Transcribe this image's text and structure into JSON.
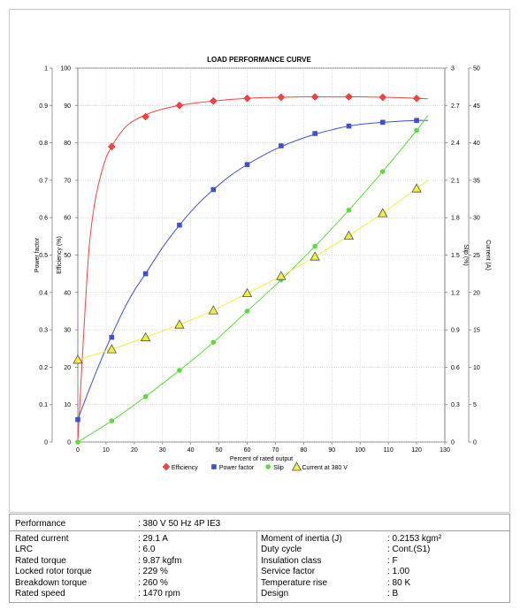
{
  "chart_data": {
    "type": "line",
    "title": "LOAD PERFORMANCE CURVE",
    "xlabel": "Percent of rated output",
    "xlim": [
      0,
      130
    ],
    "x_ticks": [
      0,
      10,
      20,
      30,
      40,
      50,
      60,
      70,
      80,
      90,
      100,
      110,
      120,
      130
    ],
    "axes": {
      "power_factor": {
        "label": "Power factor",
        "lim": [
          0,
          1
        ],
        "ticks": [
          "0",
          "0.1",
          "0.2",
          "0.3",
          "0.4",
          "0.5",
          "0.6",
          "0.7",
          "0.8",
          "0.9",
          "1"
        ]
      },
      "efficiency": {
        "label": "Efficiency (%)",
        "lim": [
          0,
          100
        ],
        "ticks": [
          "0",
          "10",
          "20",
          "30",
          "40",
          "50",
          "60",
          "70",
          "80",
          "90",
          "100"
        ]
      },
      "slip": {
        "label": "Slip (%)",
        "lim": [
          0,
          3
        ],
        "ticks": [
          "0",
          "0.3",
          "0.6",
          "0.9",
          "1.2",
          "1.5",
          "1.8",
          "2.1",
          "2.4",
          "2.7",
          "3"
        ]
      },
      "current": {
        "label": "Current (A)",
        "lim": [
          0,
          50
        ],
        "ticks": [
          "0",
          "5",
          "10",
          "15",
          "20",
          "25",
          "30",
          "35",
          "40",
          "45",
          "50"
        ]
      }
    },
    "grid": true,
    "legend_position": "bottom",
    "series": [
      {
        "name": "Efficiency",
        "axis": "efficiency",
        "color": "#ff4040",
        "marker": "diamond",
        "x": [
          12,
          24,
          36,
          48,
          60,
          72,
          84,
          96,
          108,
          120
        ],
        "values": [
          79,
          87,
          90,
          91.2,
          91.9,
          92.2,
          92.3,
          92.3,
          92.2,
          91.9
        ],
        "curve_x": [
          0,
          2,
          4,
          6,
          8,
          10,
          12,
          14,
          16,
          18,
          20,
          24,
          28,
          32,
          36,
          42,
          48,
          54,
          60,
          66,
          72,
          78,
          84,
          90,
          96,
          102,
          108,
          114,
          120,
          124
        ],
        "curve_y": [
          0,
          28,
          52,
          64,
          71,
          76,
          79,
          81.5,
          83.5,
          85,
          86,
          87.5,
          88.6,
          89.4,
          90,
          90.7,
          91.2,
          91.6,
          91.9,
          92.1,
          92.2,
          92.3,
          92.3,
          92.3,
          92.3,
          92.3,
          92.2,
          92.1,
          91.9,
          91.8
        ]
      },
      {
        "name": "Power factor",
        "axis": "power_factor",
        "color": "#4050cc",
        "marker": "square",
        "x": [
          0,
          12,
          24,
          36,
          48,
          60,
          72,
          84,
          96,
          108,
          120
        ],
        "values": [
          0.06,
          0.28,
          0.45,
          0.58,
          0.675,
          0.742,
          0.792,
          0.825,
          0.845,
          0.855,
          0.86
        ],
        "curve_x": [
          0,
          4,
          8,
          12,
          16,
          20,
          24,
          30,
          36,
          42,
          48,
          54,
          60,
          66,
          72,
          78,
          84,
          90,
          96,
          102,
          108,
          114,
          120,
          124
        ],
        "curve_y": [
          0.06,
          0.14,
          0.215,
          0.285,
          0.35,
          0.405,
          0.45,
          0.52,
          0.58,
          0.632,
          0.675,
          0.712,
          0.742,
          0.768,
          0.79,
          0.808,
          0.823,
          0.835,
          0.845,
          0.851,
          0.855,
          0.858,
          0.86,
          0.86
        ]
      },
      {
        "name": "Slip",
        "axis": "slip",
        "color": "#60d840",
        "marker": "circle",
        "x": [
          0,
          12,
          24,
          36,
          48,
          60,
          72,
          84,
          96,
          108,
          120
        ],
        "values": [
          0,
          0.17,
          0.365,
          0.575,
          0.8,
          1.05,
          1.3,
          1.57,
          1.86,
          2.17,
          2.5
        ],
        "curve_x": [
          0,
          12,
          24,
          36,
          48,
          60,
          72,
          84,
          96,
          108,
          120,
          124
        ],
        "curve_y": [
          0,
          0.17,
          0.365,
          0.575,
          0.8,
          1.05,
          1.3,
          1.57,
          1.86,
          2.17,
          2.5,
          2.62
        ]
      },
      {
        "name": "Current at 380 V",
        "axis": "current",
        "color": "#f0f040",
        "marker": "triangle",
        "x": [
          0,
          12,
          24,
          36,
          48,
          60,
          72,
          84,
          96,
          108,
          120
        ],
        "values": [
          11,
          12.4,
          14,
          15.7,
          17.6,
          19.9,
          22.2,
          24.8,
          27.6,
          30.6,
          33.9
        ],
        "curve_x": [
          0,
          12,
          24,
          36,
          48,
          60,
          72,
          84,
          96,
          108,
          120,
          124
        ],
        "curve_y": [
          11,
          12.4,
          14,
          15.7,
          17.6,
          19.9,
          22.2,
          24.8,
          27.6,
          30.6,
          33.9,
          35
        ]
      }
    ]
  },
  "performance": {
    "label": "Performance",
    "value": ": 380 V 50 Hz 4P IE3"
  },
  "specs_left": [
    {
      "label": "Rated current",
      "value": ": 29.1 A"
    },
    {
      "label": "LRC",
      "value": ": 6.0"
    },
    {
      "label": "Rated torque",
      "value": ": 9.87 kgfm"
    },
    {
      "label": "Locked rotor torque",
      "value": ": 229 %"
    },
    {
      "label": "Breakdown torque",
      "value": ": 260 %"
    },
    {
      "label": "Rated speed",
      "value": ": 1470 rpm"
    }
  ],
  "specs_right": [
    {
      "label": "Moment of inertia (J)",
      "value": ": 0.2153 kgm²"
    },
    {
      "label": "Duty cycle",
      "value": ": Cont.(S1)"
    },
    {
      "label": "Insulation class",
      "value": ": F"
    },
    {
      "label": "Service factor",
      "value": ": 1.00"
    },
    {
      "label": "Temperature rise",
      "value": ": 80 K"
    },
    {
      "label": "Design",
      "value": ": B"
    }
  ]
}
